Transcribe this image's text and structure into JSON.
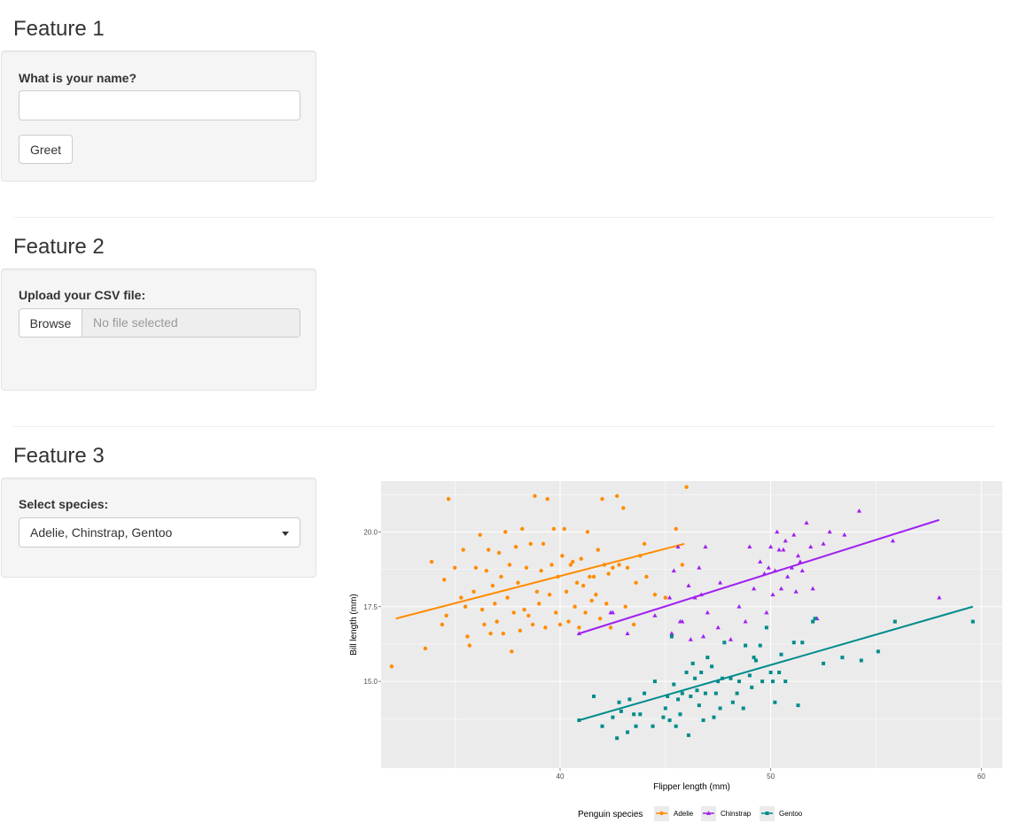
{
  "feature1": {
    "heading": "Feature 1",
    "name_label": "What is your name?",
    "name_value": "",
    "greet_button": "Greet"
  },
  "feature2": {
    "heading": "Feature 2",
    "upload_label": "Upload your CSV file:",
    "browse_button": "Browse",
    "file_placeholder": "No file selected"
  },
  "feature3": {
    "heading": "Feature 3",
    "species_label": "Select species:",
    "species_selected": "Adelie, Chinstrap, Gentoo"
  },
  "colors": {
    "Adelie": "#ff8c00",
    "Chinstrap": "#a020f0",
    "Gentoo": "#008b8b",
    "panel_bg": "#ebebeb"
  },
  "chart_data": {
    "type": "scatter",
    "xlabel": "Flipper length (mm)",
    "ylabel": "Bill length (mm)",
    "xlim": [
      31.5,
      61
    ],
    "ylim": [
      12.1,
      21.7
    ],
    "xticks": [
      40,
      50,
      60
    ],
    "yticks": [
      15.0,
      17.5,
      20.0
    ],
    "ytick_labels": [
      "15.0",
      "17.5",
      "20.0"
    ],
    "grid": true,
    "legend_title": "Penguin species",
    "legend_position": "bottom",
    "series": [
      {
        "name": "Adelie",
        "marker": "circle",
        "trend": [
          [
            32.2,
            17.1
          ],
          [
            45.9,
            19.6
          ]
        ],
        "points": [
          [
            32,
            15.5
          ],
          [
            33.6,
            16.1
          ],
          [
            33.9,
            19
          ],
          [
            34.4,
            16.9
          ],
          [
            34.5,
            18.4
          ],
          [
            34.6,
            17.2
          ],
          [
            34.7,
            21.1
          ],
          [
            35,
            18.8
          ],
          [
            35.3,
            17.8
          ],
          [
            35.4,
            19.4
          ],
          [
            35.5,
            17.5
          ],
          [
            35.6,
            16.5
          ],
          [
            35.7,
            16.2
          ],
          [
            35.9,
            18
          ],
          [
            36,
            18.8
          ],
          [
            36.2,
            19.9
          ],
          [
            36.3,
            17.4
          ],
          [
            36.4,
            16.9
          ],
          [
            36.5,
            18.7
          ],
          [
            36.6,
            19.4
          ],
          [
            36.7,
            16.6
          ],
          [
            36.8,
            18.2
          ],
          [
            36.9,
            17.6
          ],
          [
            37,
            17
          ],
          [
            37.1,
            19.3
          ],
          [
            37.2,
            18.5
          ],
          [
            37.3,
            16.6
          ],
          [
            37.4,
            20
          ],
          [
            37.5,
            17.8
          ],
          [
            37.6,
            18.9
          ],
          [
            37.7,
            16.0
          ],
          [
            37.8,
            17.3
          ],
          [
            37.9,
            19.5
          ],
          [
            38,
            18.3
          ],
          [
            38.1,
            16.7
          ],
          [
            38.2,
            20.1
          ],
          [
            38.3,
            17.4
          ],
          [
            38.4,
            18.8
          ],
          [
            38.5,
            17.2
          ],
          [
            38.6,
            19.6
          ],
          [
            38.7,
            16.9
          ],
          [
            38.8,
            21.2
          ],
          [
            38.9,
            18.0
          ],
          [
            39,
            17.6
          ],
          [
            39.1,
            18.7
          ],
          [
            39.2,
            19.6
          ],
          [
            39.3,
            16.8
          ],
          [
            39.4,
            21.1
          ],
          [
            39.5,
            17.9
          ],
          [
            39.6,
            18.9
          ],
          [
            39.7,
            20.1
          ],
          [
            39.8,
            17.3
          ],
          [
            39.9,
            18.5
          ],
          [
            40.0,
            16.9
          ],
          [
            40.1,
            19.2
          ],
          [
            40.2,
            20.1
          ],
          [
            40.3,
            18.0
          ],
          [
            40.4,
            17.0
          ],
          [
            40.5,
            18.9
          ],
          [
            40.6,
            19.0
          ],
          [
            40.7,
            17.5
          ],
          [
            40.8,
            18.3
          ],
          [
            40.9,
            16.8
          ],
          [
            41.0,
            19.1
          ],
          [
            41.1,
            18.2
          ],
          [
            41.2,
            17.3
          ],
          [
            41.3,
            20.0
          ],
          [
            41.4,
            18.5
          ],
          [
            41.5,
            17.7
          ],
          [
            41.6,
            18.5
          ],
          [
            41.7,
            17.9
          ],
          [
            41.8,
            19.4
          ],
          [
            41.9,
            17.1
          ],
          [
            42.0,
            21.1
          ],
          [
            42.1,
            18.9
          ],
          [
            42.2,
            17.6
          ],
          [
            42.3,
            18.6
          ],
          [
            42.4,
            16.8
          ],
          [
            42.5,
            18.8
          ],
          [
            42.7,
            21.2
          ],
          [
            42.8,
            18.9
          ],
          [
            43.0,
            20.8
          ],
          [
            43.1,
            17.5
          ],
          [
            43.2,
            18.8
          ],
          [
            43.5,
            16.9
          ],
          [
            43.6,
            18.3
          ],
          [
            43.8,
            19.2
          ],
          [
            44.0,
            19.6
          ],
          [
            44.1,
            18.5
          ],
          [
            44.5,
            17.9
          ],
          [
            45.0,
            17.8
          ],
          [
            45.5,
            20.1
          ],
          [
            45.8,
            18.9
          ],
          [
            46.0,
            21.5
          ]
        ]
      },
      {
        "name": "Chinstrap",
        "marker": "triangle",
        "trend": [
          [
            40.9,
            16.6
          ],
          [
            58.0,
            20.4
          ]
        ],
        "points": [
          [
            40.9,
            16.6
          ],
          [
            42.4,
            17.3
          ],
          [
            42.5,
            17.3
          ],
          [
            43.2,
            16.6
          ],
          [
            44.5,
            17.2
          ],
          [
            45.2,
            17.8
          ],
          [
            45.3,
            16.6
          ],
          [
            45.4,
            18.7
          ],
          [
            45.6,
            19.5
          ],
          [
            45.7,
            17.0
          ],
          [
            45.8,
            17.0
          ],
          [
            46.1,
            18.2
          ],
          [
            46.2,
            16.4
          ],
          [
            46.4,
            17.8
          ],
          [
            46.6,
            18.8
          ],
          [
            46.7,
            17.9
          ],
          [
            46.8,
            16.5
          ],
          [
            46.9,
            19.5
          ],
          [
            47.0,
            17.3
          ],
          [
            47.5,
            16.8
          ],
          [
            47.6,
            18.3
          ],
          [
            48.1,
            16.4
          ],
          [
            48.5,
            17.5
          ],
          [
            48.8,
            17.0
          ],
          [
            49.0,
            19.5
          ],
          [
            49.2,
            18.1
          ],
          [
            49.5,
            19.0
          ],
          [
            49.7,
            18.6
          ],
          [
            49.8,
            17.3
          ],
          [
            49.9,
            18.8
          ],
          [
            50.0,
            19.5
          ],
          [
            50.1,
            17.9
          ],
          [
            50.2,
            18.7
          ],
          [
            50.3,
            20.0
          ],
          [
            50.4,
            19.4
          ],
          [
            50.5,
            18.1
          ],
          [
            50.6,
            19.4
          ],
          [
            50.7,
            19.7
          ],
          [
            50.8,
            18.5
          ],
          [
            51.0,
            18.8
          ],
          [
            51.1,
            19.9
          ],
          [
            51.2,
            18.0
          ],
          [
            51.3,
            19.2
          ],
          [
            51.4,
            19.0
          ],
          [
            51.5,
            18.7
          ],
          [
            51.7,
            20.3
          ],
          [
            51.9,
            19.5
          ],
          [
            52.0,
            18.1
          ],
          [
            52.2,
            17.1
          ],
          [
            52.5,
            19.6
          ],
          [
            52.8,
            20.0
          ],
          [
            53.5,
            19.9
          ],
          [
            54.2,
            20.7
          ],
          [
            55.8,
            19.7
          ],
          [
            58.0,
            17.8
          ]
        ]
      },
      {
        "name": "Gentoo",
        "marker": "square",
        "trend": [
          [
            40.9,
            13.7
          ],
          [
            59.6,
            17.5
          ]
        ],
        "points": [
          [
            40.9,
            13.7
          ],
          [
            41.6,
            14.5
          ],
          [
            42.0,
            13.5
          ],
          [
            42.5,
            13.8
          ],
          [
            42.7,
            13.1
          ],
          [
            42.8,
            14.3
          ],
          [
            42.9,
            14.0
          ],
          [
            43.2,
            13.3
          ],
          [
            43.3,
            14.4
          ],
          [
            43.5,
            13.9
          ],
          [
            43.6,
            13.5
          ],
          [
            43.8,
            13.9
          ],
          [
            44.0,
            14.6
          ],
          [
            44.4,
            13.5
          ],
          [
            44.5,
            15.0
          ],
          [
            44.9,
            13.8
          ],
          [
            45.0,
            14.1
          ],
          [
            45.1,
            14.5
          ],
          [
            45.2,
            13.7
          ],
          [
            45.3,
            16.5
          ],
          [
            45.4,
            14.9
          ],
          [
            45.5,
            13.5
          ],
          [
            45.6,
            14.4
          ],
          [
            45.7,
            13.9
          ],
          [
            45.8,
            14.6
          ],
          [
            46.0,
            15.3
          ],
          [
            46.1,
            13.2
          ],
          [
            46.2,
            14.5
          ],
          [
            46.3,
            15.6
          ],
          [
            46.4,
            15.1
          ],
          [
            46.5,
            14.7
          ],
          [
            46.6,
            14.2
          ],
          [
            46.7,
            15.3
          ],
          [
            46.8,
            13.7
          ],
          [
            46.9,
            14.6
          ],
          [
            47.0,
            15.8
          ],
          [
            47.2,
            15.5
          ],
          [
            47.3,
            13.8
          ],
          [
            47.4,
            14.6
          ],
          [
            47.5,
            15.0
          ],
          [
            47.6,
            14.1
          ],
          [
            47.7,
            15.1
          ],
          [
            47.8,
            16.3
          ],
          [
            48.1,
            15.1
          ],
          [
            48.2,
            14.3
          ],
          [
            48.4,
            14.6
          ],
          [
            48.5,
            15.0
          ],
          [
            48.7,
            14.1
          ],
          [
            48.8,
            16.2
          ],
          [
            49.0,
            15.2
          ],
          [
            49.1,
            14.8
          ],
          [
            49.2,
            15.8
          ],
          [
            49.3,
            15.7
          ],
          [
            49.5,
            16.2
          ],
          [
            49.6,
            15.0
          ],
          [
            49.8,
            16.8
          ],
          [
            50.0,
            15.3
          ],
          [
            50.1,
            15.0
          ],
          [
            50.2,
            14.3
          ],
          [
            50.4,
            15.3
          ],
          [
            50.5,
            15.9
          ],
          [
            50.7,
            15.0
          ],
          [
            51.1,
            16.3
          ],
          [
            51.3,
            14.2
          ],
          [
            51.5,
            16.3
          ],
          [
            52.0,
            17.0
          ],
          [
            52.1,
            17.1
          ],
          [
            52.5,
            15.6
          ],
          [
            53.4,
            15.8
          ],
          [
            54.3,
            15.7
          ],
          [
            55.1,
            16.0
          ],
          [
            55.9,
            17.0
          ],
          [
            59.6,
            17.0
          ]
        ]
      }
    ]
  }
}
